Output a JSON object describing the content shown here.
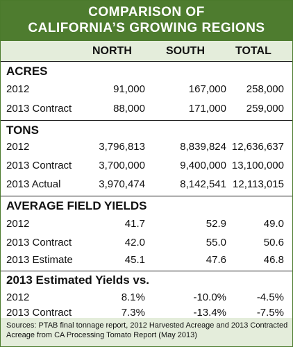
{
  "title_line1": "COMPARISON OF",
  "title_line2": "CALIFORNIA’S GROWING REGIONS",
  "columns": [
    "NORTH",
    "SOUTH",
    "TOTAL"
  ],
  "chart_data": {
    "type": "table",
    "title": "COMPARISON OF CALIFORNIA’S GROWING REGIONS",
    "columns": [
      "NORTH",
      "SOUTH",
      "TOTAL"
    ],
    "sections": [
      {
        "name": "ACRES",
        "rows": [
          {
            "label": "2012",
            "values": [
              "91,000",
              "167,000",
              "258,000"
            ]
          },
          {
            "label": "2013 Contract",
            "values": [
              "88,000",
              "171,000",
              "259,000"
            ]
          }
        ]
      },
      {
        "name": "TONS",
        "rows": [
          {
            "label": "2012",
            "values": [
              "3,796,813",
              "8,839,824",
              "12,636,637"
            ]
          },
          {
            "label": "2013 Contract",
            "values": [
              "3,700,000",
              "9,400,000",
              "13,100,000"
            ]
          },
          {
            "label": "2013 Actual",
            "values": [
              "3,970,474",
              "8,142,541",
              "12,113,015"
            ]
          }
        ]
      },
      {
        "name": "AVERAGE FIELD YIELDS",
        "rows": [
          {
            "label": "2012",
            "values": [
              "41.7",
              "52.9",
              "49.0"
            ]
          },
          {
            "label": "2013 Contract",
            "values": [
              "42.0",
              "55.0",
              "50.6"
            ]
          },
          {
            "label": "2013 Estimate",
            "values": [
              "45.1",
              "47.6",
              "46.8"
            ]
          }
        ]
      },
      {
        "name": "2013 Estimated Yields vs.",
        "rows": [
          {
            "label": "2012",
            "values": [
              "8.1%",
              "-10.0%",
              "-4.5%"
            ]
          },
          {
            "label": "2013 Contract",
            "values": [
              "7.3%",
              "-13.4%",
              "-7.5%"
            ]
          }
        ]
      }
    ]
  },
  "sources": "Sources:  PTAB final tonnage report,  2012 Harvested Acreage and 2013 Contracted Acreage from CA Processing Tomato Report (May 2013)",
  "colors": {
    "title_bg": "#4e7c2f",
    "header_bg": "#e4eddb",
    "row_shade": "#eef3e8"
  }
}
